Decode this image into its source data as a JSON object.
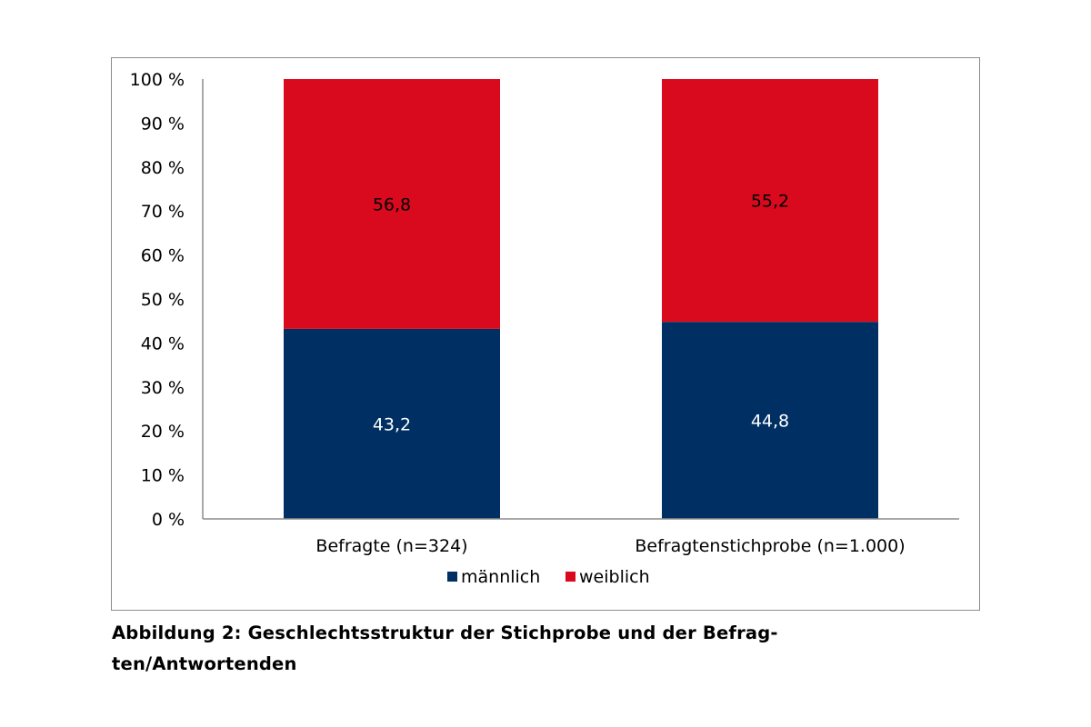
{
  "chart_data": {
    "type": "bar",
    "stacked": true,
    "categories": [
      "Befragte (n=324)",
      "Befragtenstichprobe (n=1.000)"
    ],
    "series": [
      {
        "name": "männlich",
        "values": [
          43.2,
          44.8
        ],
        "labels": [
          "43,2",
          "44,8"
        ],
        "color": "#003063"
      },
      {
        "name": "weiblich",
        "values": [
          56.8,
          55.2
        ],
        "labels": [
          "56,8",
          "55,2"
        ],
        "color": "#d90a1e"
      }
    ],
    "y_ticks": [
      "0 %",
      "10 %",
      "20 %",
      "30 %",
      "40 %",
      "50 %",
      "60 %",
      "70 %",
      "80 %",
      "90 %",
      "100 %"
    ],
    "ylim": [
      0,
      100
    ],
    "grid": false,
    "legend_position": "bottom"
  },
  "caption": {
    "line1": "Abbildung 2: Geschlechtsstruktur der Stichprobe und der Befrag-",
    "line2": "ten/Antwortenden"
  }
}
